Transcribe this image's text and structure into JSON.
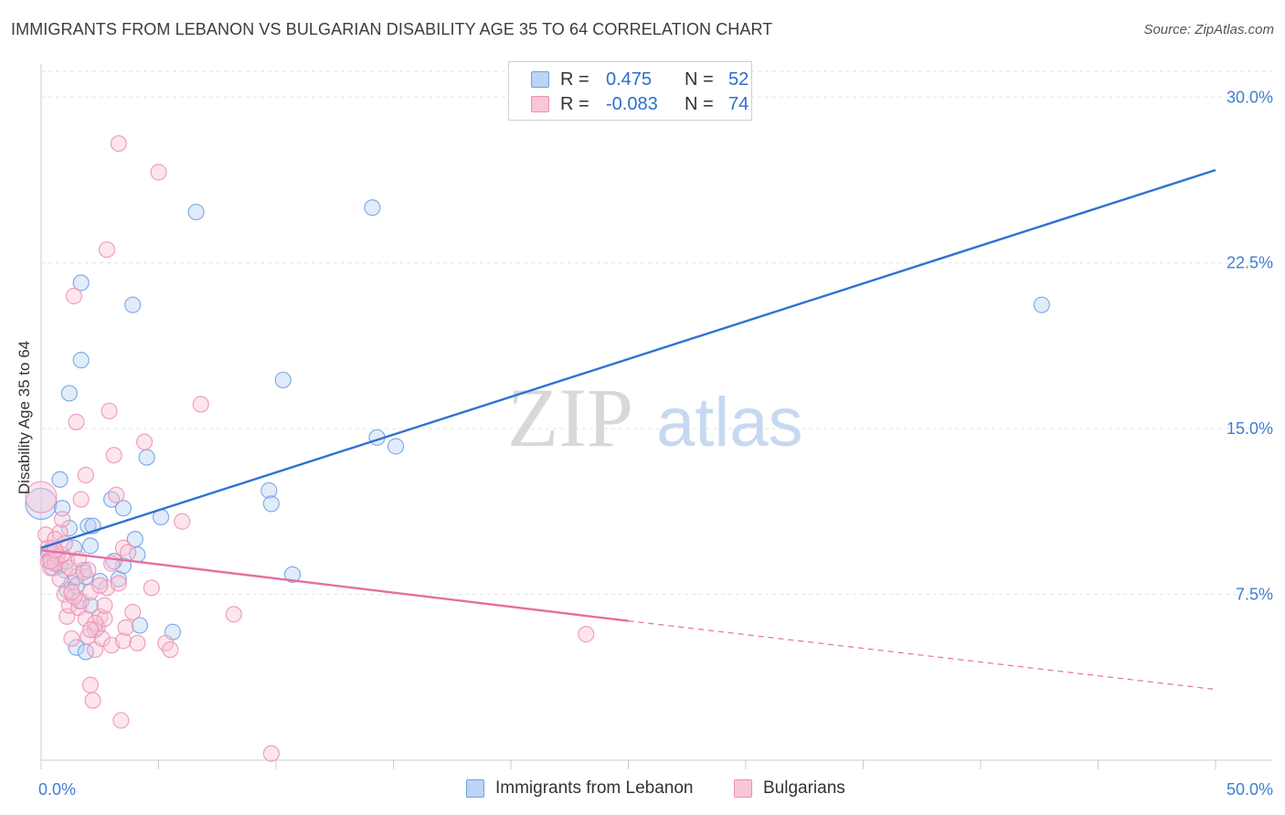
{
  "title": "IMMIGRANTS FROM LEBANON VS BULGARIAN DISABILITY AGE 35 TO 64 CORRELATION CHART",
  "source": "Source: ZipAtlas.com",
  "watermark": {
    "zip": "ZIP",
    "atlas": "atlas"
  },
  "legend": {
    "rows": [
      {
        "r_label": "R =",
        "r_value": "0.475",
        "n_label": "N =",
        "n_value": "52",
        "color": "#6f9fe0",
        "fill": "#bcd4f5"
      },
      {
        "r_label": "R =",
        "r_value": "-0.083",
        "n_label": "N =",
        "n_value": "74",
        "color": "#ee8fb0",
        "fill": "#f9c6d7"
      }
    ]
  },
  "bottom_legend": [
    {
      "label": "Immigrants from Lebanon",
      "color": "#6f9fe0",
      "fill": "#bcd4f5"
    },
    {
      "label": "Bulgarians",
      "color": "#ee8fb0",
      "fill": "#f9c6d7"
    }
  ],
  "chart_data": {
    "type": "scatter",
    "title": "IMMIGRANTS FROM LEBANON VS BULGARIAN DISABILITY AGE 35 TO 64 CORRELATION CHART",
    "xlabel": "",
    "ylabel": "Disability Age 35 to 64",
    "xlim": [
      0,
      50
    ],
    "ylim": [
      0,
      31.5
    ],
    "x_tick_labels": [
      "0.0%",
      "50.0%"
    ],
    "y_ticks": [
      7.5,
      15.0,
      22.5,
      30.0
    ],
    "y_tick_labels": [
      "7.5%",
      "15.0%",
      "22.5%",
      "30.0%"
    ],
    "grid": true,
    "legend_position": "top-center",
    "series": [
      {
        "name": "Immigrants from Lebanon",
        "color": "#6f9fe0",
        "fill": "#bcd4f5",
        "line_color": "#2f72d0",
        "trend": {
          "x": [
            0,
            50
          ],
          "y": [
            9.6,
            26.7
          ]
        },
        "points": [
          [
            0.0,
            11.6
          ],
          [
            0.3,
            9.4
          ],
          [
            0.4,
            9.1
          ],
          [
            0.5,
            8.7
          ],
          [
            0.6,
            9.0
          ],
          [
            0.7,
            9.3
          ],
          [
            0.7,
            8.9
          ],
          [
            0.8,
            12.7
          ],
          [
            0.9,
            11.4
          ],
          [
            1.0,
            8.6
          ],
          [
            1.1,
            7.7
          ],
          [
            1.2,
            10.5
          ],
          [
            1.3,
            8.0
          ],
          [
            1.4,
            9.6
          ],
          [
            1.5,
            5.1
          ],
          [
            1.6,
            7.2
          ],
          [
            1.7,
            18.1
          ],
          [
            1.7,
            21.6
          ],
          [
            1.8,
            8.6
          ],
          [
            1.9,
            4.9
          ],
          [
            2.0,
            10.6
          ],
          [
            2.1,
            9.7
          ],
          [
            2.1,
            7.0
          ],
          [
            2.2,
            10.6
          ],
          [
            2.3,
            5.9
          ],
          [
            2.5,
            8.1
          ],
          [
            3.0,
            11.8
          ],
          [
            3.3,
            8.2
          ],
          [
            3.5,
            8.8
          ],
          [
            3.5,
            11.4
          ],
          [
            3.9,
            20.6
          ],
          [
            4.0,
            10.0
          ],
          [
            4.1,
            9.3
          ],
          [
            4.2,
            6.1
          ],
          [
            4.5,
            13.7
          ],
          [
            5.1,
            11.0
          ],
          [
            5.6,
            5.8
          ],
          [
            6.6,
            24.8
          ],
          [
            9.7,
            12.2
          ],
          [
            9.8,
            11.6
          ],
          [
            10.3,
            17.2
          ],
          [
            10.7,
            8.4
          ],
          [
            14.1,
            25.0
          ],
          [
            14.3,
            14.6
          ],
          [
            15.1,
            14.2
          ],
          [
            42.6,
            20.6
          ],
          [
            0.5,
            9.6
          ],
          [
            0.8,
            8.8
          ],
          [
            1.2,
            16.6
          ],
          [
            1.5,
            7.9
          ],
          [
            3.1,
            9.0
          ],
          [
            1.9,
            8.3
          ]
        ]
      },
      {
        "name": "Bulgarians",
        "color": "#ee8fb0",
        "fill": "#f9c6d7",
        "line_color": "#e66ea0",
        "trend": {
          "x": [
            0,
            25
          ],
          "y": [
            9.5,
            6.3
          ]
        },
        "trend_dashed": {
          "x": [
            25,
            50
          ],
          "y": [
            6.3,
            3.2
          ]
        },
        "points": [
          [
            0.0,
            11.9
          ],
          [
            0.2,
            10.2
          ],
          [
            0.3,
            9.0
          ],
          [
            0.4,
            8.7
          ],
          [
            0.5,
            9.4
          ],
          [
            0.6,
            8.9
          ],
          [
            0.7,
            9.2
          ],
          [
            0.8,
            10.3
          ],
          [
            0.9,
            10.9
          ],
          [
            1.0,
            7.5
          ],
          [
            1.1,
            6.5
          ],
          [
            1.1,
            9.0
          ],
          [
            1.2,
            7.0
          ],
          [
            1.3,
            5.5
          ],
          [
            1.4,
            21.0
          ],
          [
            1.5,
            15.3
          ],
          [
            1.5,
            8.3
          ],
          [
            1.6,
            6.9
          ],
          [
            1.7,
            7.2
          ],
          [
            1.7,
            11.8
          ],
          [
            1.8,
            8.5
          ],
          [
            1.9,
            6.4
          ],
          [
            1.9,
            12.9
          ],
          [
            2.0,
            5.6
          ],
          [
            2.1,
            3.4
          ],
          [
            2.1,
            7.6
          ],
          [
            2.2,
            2.7
          ],
          [
            2.3,
            5.0
          ],
          [
            2.4,
            6.0
          ],
          [
            2.5,
            6.5
          ],
          [
            2.6,
            5.5
          ],
          [
            2.7,
            6.4
          ],
          [
            2.7,
            7.0
          ],
          [
            2.8,
            23.1
          ],
          [
            2.8,
            7.8
          ],
          [
            2.9,
            15.8
          ],
          [
            3.0,
            5.2
          ],
          [
            3.1,
            13.8
          ],
          [
            3.2,
            12.0
          ],
          [
            3.3,
            8.0
          ],
          [
            3.3,
            27.9
          ],
          [
            3.4,
            1.8
          ],
          [
            3.5,
            9.6
          ],
          [
            3.5,
            5.4
          ],
          [
            3.6,
            6.0
          ],
          [
            3.7,
            9.4
          ],
          [
            3.9,
            6.7
          ],
          [
            4.1,
            5.3
          ],
          [
            4.4,
            14.4
          ],
          [
            4.7,
            7.8
          ],
          [
            5.0,
            26.6
          ],
          [
            5.3,
            5.3
          ],
          [
            5.5,
            5.0
          ],
          [
            6.0,
            10.8
          ],
          [
            6.8,
            16.1
          ],
          [
            8.2,
            6.6
          ],
          [
            9.8,
            0.3
          ],
          [
            23.2,
            5.7
          ],
          [
            0.3,
            9.6
          ],
          [
            0.6,
            10.0
          ],
          [
            0.9,
            9.3
          ],
          [
            1.2,
            8.7
          ],
          [
            1.4,
            7.4
          ],
          [
            1.6,
            9.1
          ],
          [
            2.0,
            8.6
          ],
          [
            2.3,
            6.2
          ],
          [
            2.5,
            7.9
          ],
          [
            3.0,
            8.9
          ],
          [
            1.0,
            9.8
          ],
          [
            0.4,
            9.0
          ],
          [
            0.8,
            8.2
          ],
          [
            1.3,
            7.6
          ],
          [
            2.1,
            5.9
          ],
          [
            0.6,
            9.5
          ]
        ]
      }
    ]
  }
}
